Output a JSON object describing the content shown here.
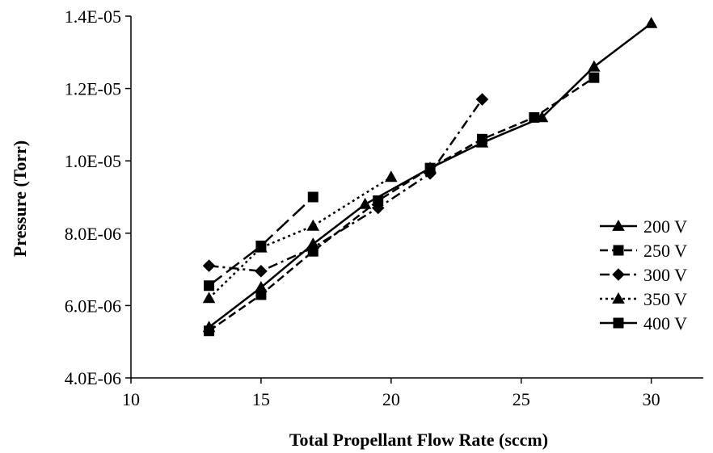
{
  "chart_data": {
    "type": "line",
    "title": "",
    "xlabel": "Total Propellant Flow Rate (sccm)",
    "ylabel": "Pressure (Torr)",
    "xlim": [
      10,
      32
    ],
    "ylim": [
      4e-06,
      1.4e-05
    ],
    "x_ticks": [
      10,
      15,
      20,
      25,
      30
    ],
    "x_tick_labels": [
      "10",
      "15",
      "20",
      "25",
      "30"
    ],
    "y_ticks": [
      4e-06,
      6e-06,
      8e-06,
      1e-05,
      1.2e-05,
      1.4e-05
    ],
    "y_tick_labels": [
      "4.0E-06",
      "6.0E-06",
      "8.0E-06",
      "1.0E-05",
      "1.2E-05",
      "1.4E-05"
    ],
    "grid": false,
    "legend_position": "right",
    "series": [
      {
        "name": "200 V",
        "marker": "triangle",
        "line_style": "solid",
        "color": "#000000",
        "x": [
          13,
          15,
          17,
          19,
          21.5,
          23.5,
          25.8,
          27.8,
          30
        ],
        "y": [
          5.4e-06,
          6.5e-06,
          7.7e-06,
          8.8e-06,
          9.8e-06,
          1.05e-05,
          1.12e-05,
          1.26e-05,
          1.38e-05
        ]
      },
      {
        "name": "250 V",
        "marker": "square",
        "line_style": "dashed",
        "color": "#000000",
        "x": [
          13,
          15,
          17,
          19.5,
          21.5,
          23.5,
          25.5,
          27.8
        ],
        "y": [
          5.3e-06,
          6.3e-06,
          7.5e-06,
          8.9e-06,
          9.8e-06,
          1.06e-05,
          1.12e-05,
          1.23e-05
        ]
      },
      {
        "name": "300 V",
        "marker": "diamond",
        "line_style": "dash-dot",
        "color": "#000000",
        "x": [
          13,
          15,
          17,
          19.5,
          21.5,
          23.5
        ],
        "y": [
          7.1e-06,
          6.95e-06,
          7.6e-06,
          8.7e-06,
          9.65e-06,
          1.17e-05
        ]
      },
      {
        "name": "350 V",
        "marker": "triangle",
        "line_style": "dotted",
        "color": "#000000",
        "x": [
          13,
          15,
          17,
          20
        ],
        "y": [
          6.2e-06,
          7.6e-06,
          8.2e-06,
          9.55e-06
        ]
      },
      {
        "name": "400 V",
        "marker": "square",
        "line_style": "long-dash",
        "color": "#000000",
        "x": [
          13,
          15,
          17
        ],
        "y": [
          6.55e-06,
          7.65e-06,
          9e-06
        ]
      }
    ]
  }
}
